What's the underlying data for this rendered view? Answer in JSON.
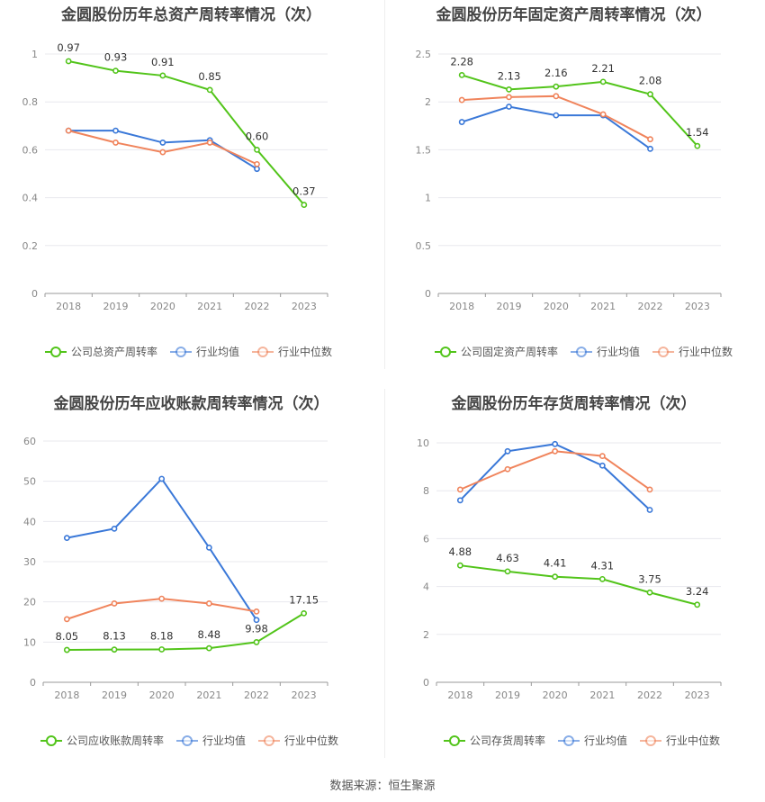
{
  "footer": "数据来源：恒生聚源",
  "colors": {
    "company": "#52c41a",
    "avg": "#3a78d8",
    "median": "#f0845c"
  },
  "chart_data": [
    {
      "type": "line",
      "title": "金圆股份历年总资产周转率情况（次）",
      "categories": [
        "2018",
        "2019",
        "2020",
        "2021",
        "2022",
        "2023"
      ],
      "ylim": [
        0,
        1
      ],
      "yticks": [
        0,
        0.2,
        0.4,
        0.6,
        0.8,
        1
      ],
      "ytick_labels": [
        "0",
        "0.2",
        "0.4",
        "0.6",
        "0.8",
        "1"
      ],
      "series": [
        {
          "name": "公司总资产周转率",
          "color": "#52c41a",
          "values": [
            0.97,
            0.93,
            0.91,
            0.85,
            0.6,
            0.37
          ],
          "labels": [
            "0.97",
            "0.93",
            "0.91",
            "0.85",
            "0.60",
            "0.37"
          ]
        },
        {
          "name": "行业均值",
          "color": "#3a78d8",
          "values": [
            0.68,
            0.68,
            0.63,
            0.64,
            0.52,
            null
          ]
        },
        {
          "name": "行业中位数",
          "color": "#f0845c",
          "values": [
            0.68,
            0.63,
            0.59,
            0.63,
            0.54,
            null
          ]
        }
      ]
    },
    {
      "type": "line",
      "title": "金圆股份历年固定资产周转率情况（次）",
      "categories": [
        "2018",
        "2019",
        "2020",
        "2021",
        "2022",
        "2023"
      ],
      "ylim": [
        0,
        2.5
      ],
      "yticks": [
        0,
        0.5,
        1,
        1.5,
        2,
        2.5
      ],
      "ytick_labels": [
        "0",
        "0.5",
        "1",
        "1.5",
        "2",
        "2.5"
      ],
      "series": [
        {
          "name": "公司固定资产周转率",
          "color": "#52c41a",
          "values": [
            2.28,
            2.13,
            2.16,
            2.21,
            2.08,
            1.54
          ],
          "labels": [
            "2.28",
            "2.13",
            "2.16",
            "2.21",
            "2.08",
            "1.54"
          ]
        },
        {
          "name": "行业均值",
          "color": "#3a78d8",
          "values": [
            1.79,
            1.95,
            1.86,
            1.86,
            1.51,
            null
          ]
        },
        {
          "name": "行业中位数",
          "color": "#f0845c",
          "values": [
            2.02,
            2.05,
            2.06,
            1.87,
            1.61,
            null
          ]
        }
      ]
    },
    {
      "type": "line",
      "title": "金圆股份历年应收账款周转率情况（次）",
      "categories": [
        "2018",
        "2019",
        "2020",
        "2021",
        "2022",
        "2023"
      ],
      "ylim": [
        0,
        60
      ],
      "yticks": [
        0,
        10,
        20,
        30,
        40,
        50,
        60
      ],
      "ytick_labels": [
        "0",
        "10",
        "20",
        "30",
        "40",
        "50",
        "60"
      ],
      "series": [
        {
          "name": "公司应收账款周转率",
          "color": "#52c41a",
          "values": [
            8.05,
            8.13,
            8.18,
            8.48,
            9.98,
            17.15
          ],
          "labels": [
            "8.05",
            "8.13",
            "8.18",
            "8.48",
            "9.98",
            "17.15"
          ]
        },
        {
          "name": "行业均值",
          "color": "#3a78d8",
          "values": [
            35.9,
            38.2,
            50.6,
            33.5,
            15.5,
            null
          ]
        },
        {
          "name": "行业中位数",
          "color": "#f0845c",
          "values": [
            15.7,
            19.6,
            20.8,
            19.6,
            17.6,
            null
          ]
        }
      ]
    },
    {
      "type": "line",
      "title": "金圆股份历年存货周转率情况（次）",
      "categories": [
        "2018",
        "2019",
        "2020",
        "2021",
        "2022",
        "2023"
      ],
      "ylim": [
        0,
        10
      ],
      "yticks": [
        0,
        2,
        4,
        6,
        8,
        10
      ],
      "ytick_labels": [
        "0",
        "2",
        "4",
        "6",
        "8",
        "10"
      ],
      "series": [
        {
          "name": "公司存货周转率",
          "color": "#52c41a",
          "values": [
            4.88,
            4.63,
            4.41,
            4.31,
            3.75,
            3.24
          ],
          "labels": [
            "4.88",
            "4.63",
            "4.41",
            "4.31",
            "3.75",
            "3.24"
          ]
        },
        {
          "name": "行业均值",
          "color": "#3a78d8",
          "values": [
            7.6,
            9.65,
            9.95,
            9.05,
            7.2,
            null
          ]
        },
        {
          "name": "行业中位数",
          "color": "#f0845c",
          "values": [
            8.05,
            8.9,
            9.65,
            9.45,
            8.05,
            null
          ]
        }
      ]
    }
  ]
}
